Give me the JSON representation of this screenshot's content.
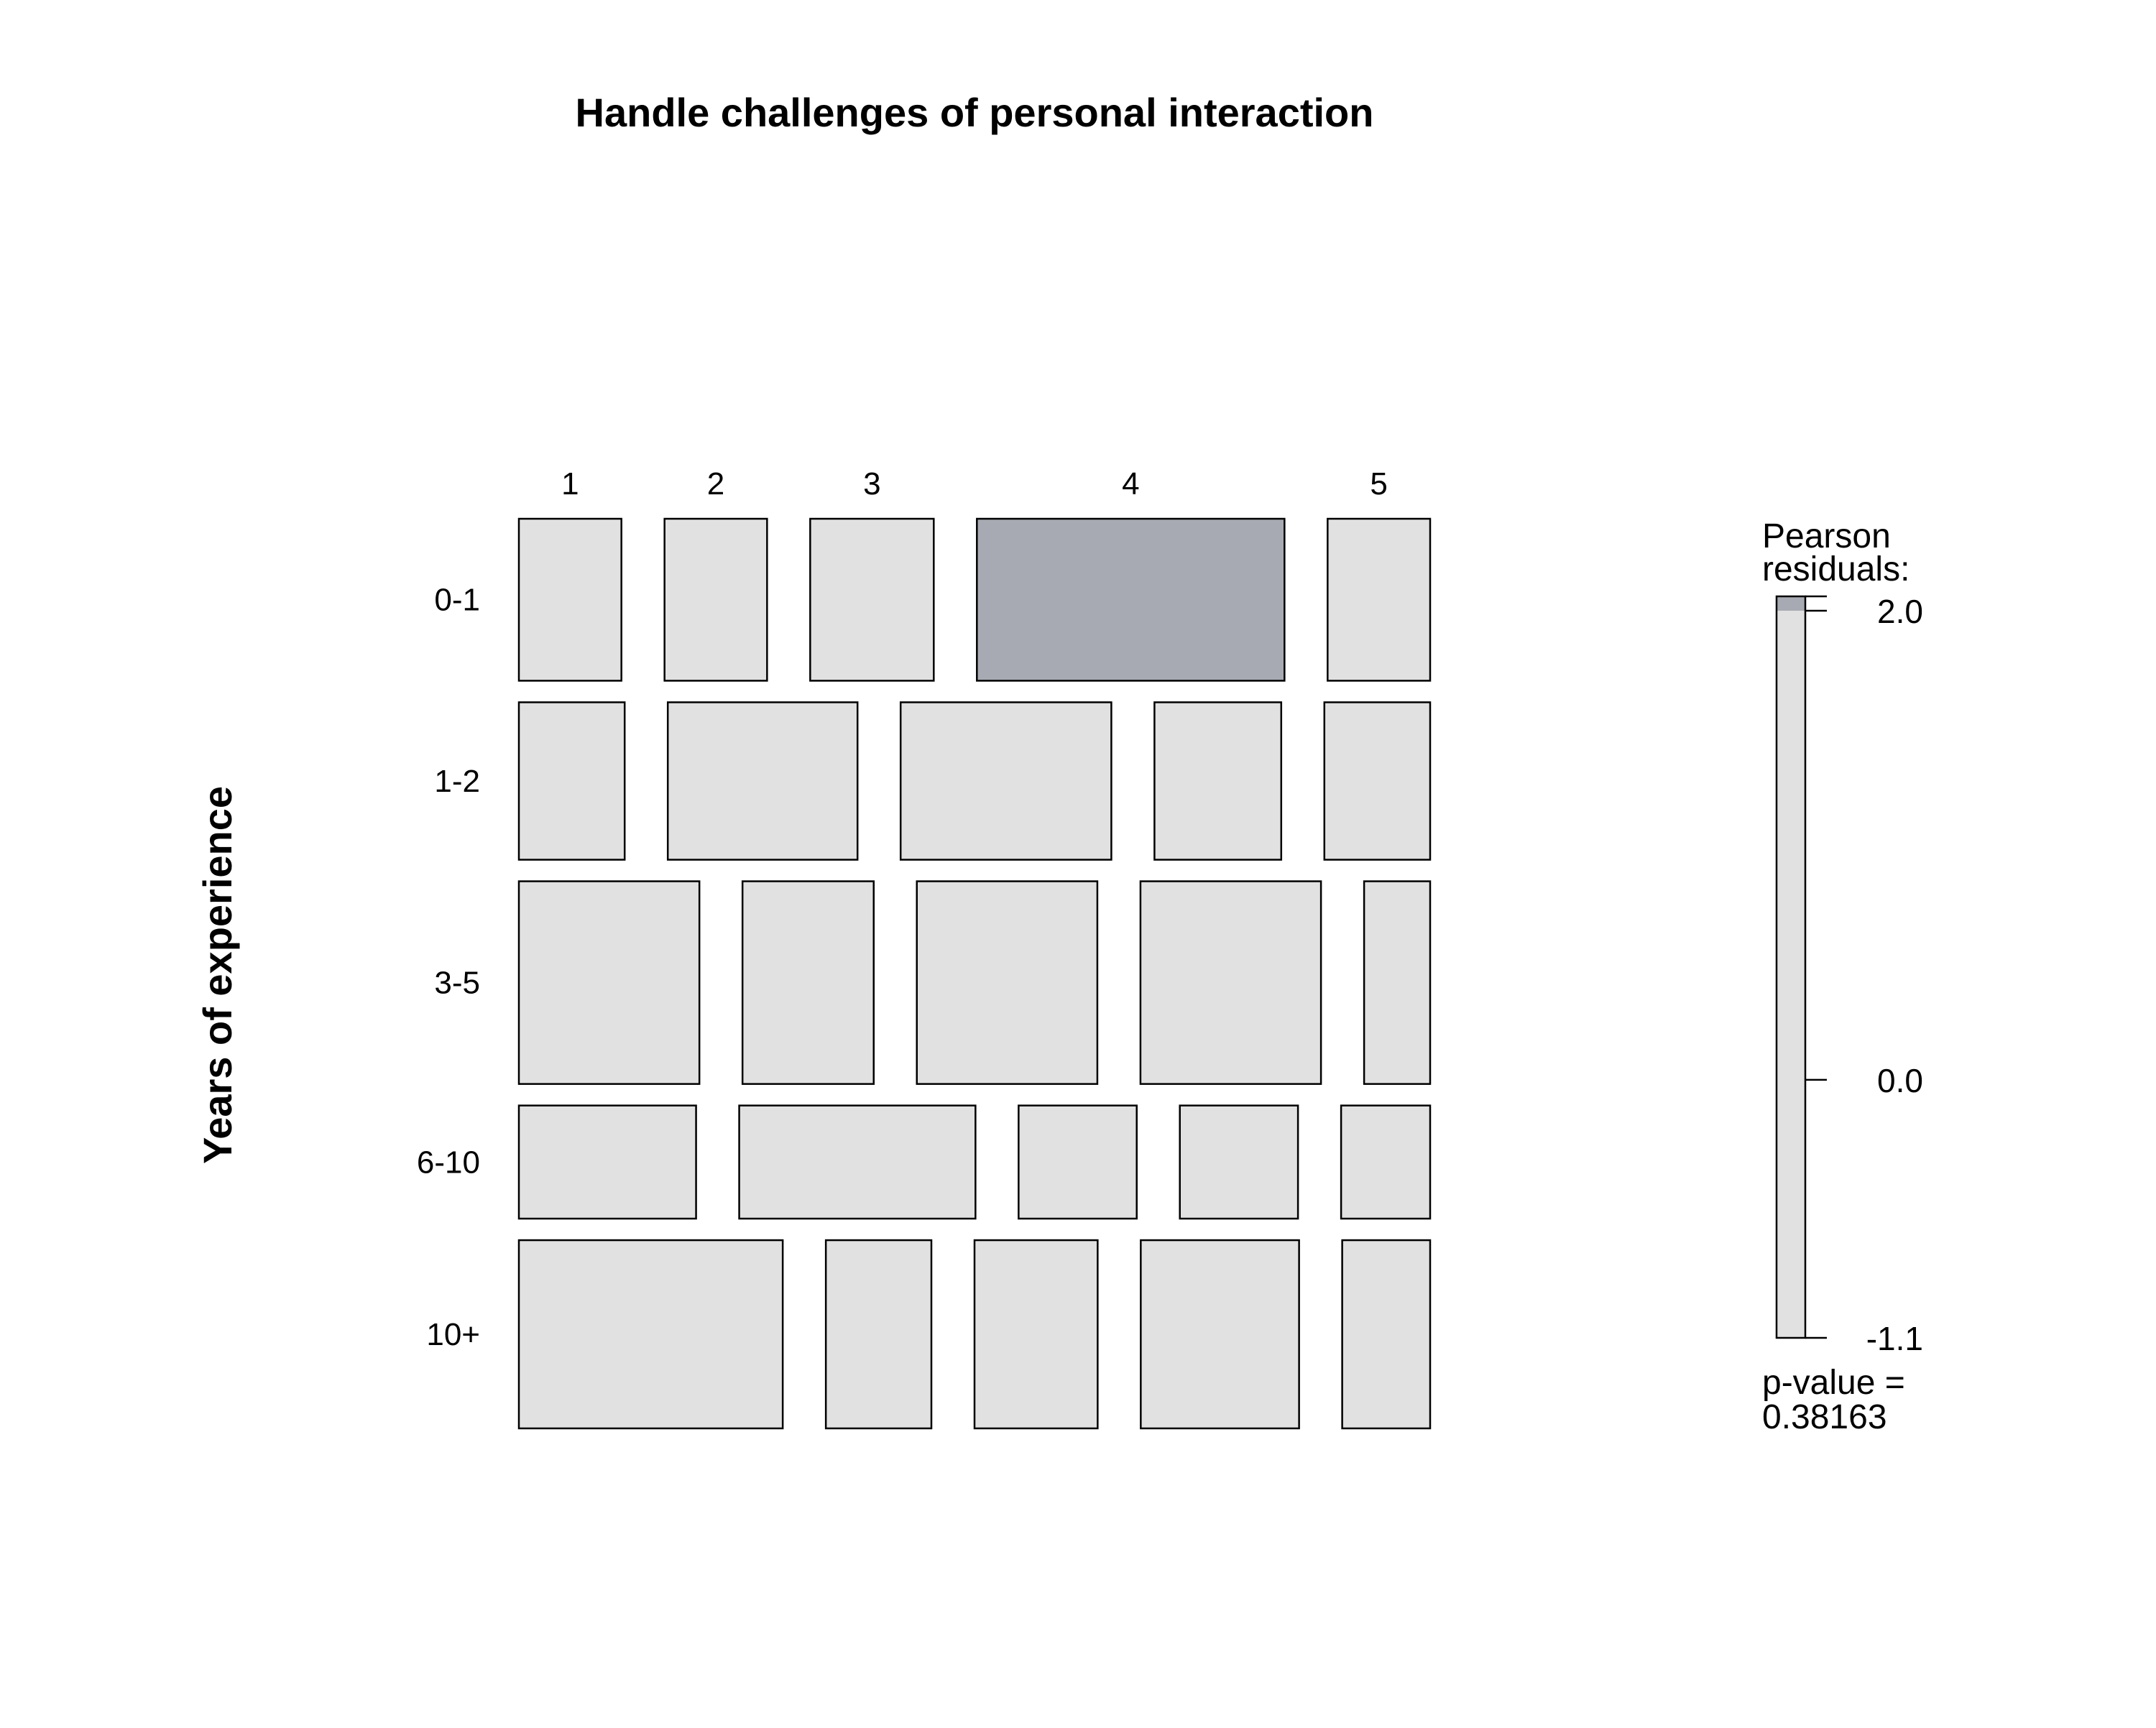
{
  "chart_data": {
    "type": "mosaic",
    "title": "Handle challenges of personal interaction",
    "ylabel": "Years of experience",
    "xlabel": "",
    "columns": [
      "1",
      "2",
      "3",
      "4",
      "5"
    ],
    "rows": [
      "0-1",
      "1-2",
      "3-5",
      "6-10",
      "10+"
    ],
    "row_proportions": [
      0.179,
      0.174,
      0.224,
      0.125,
      0.208
    ],
    "cell_proportions": [
      [
        0.117,
        0.117,
        0.141,
        0.351,
        0.117
      ],
      [
        0.121,
        0.217,
        0.241,
        0.145,
        0.121
      ],
      [
        0.205,
        0.149,
        0.205,
        0.205,
        0.075
      ],
      [
        0.201,
        0.268,
        0.134,
        0.134,
        0.101
      ],
      [
        0.3,
        0.12,
        0.14,
        0.18,
        0.1
      ]
    ],
    "residual_shading": [
      [
        "neutral",
        "neutral",
        "neutral",
        "positive",
        "neutral"
      ],
      [
        "neutral",
        "neutral",
        "neutral",
        "neutral",
        "neutral"
      ],
      [
        "neutral",
        "neutral",
        "neutral",
        "neutral",
        "neutral"
      ],
      [
        "neutral",
        "neutral",
        "neutral",
        "neutral",
        "neutral"
      ],
      [
        "neutral",
        "neutral",
        "neutral",
        "neutral",
        "neutral"
      ]
    ],
    "colors": {
      "neutral": "#e1e1e1",
      "positive": "#a8aab3",
      "border": "#000000"
    },
    "legend": {
      "title_line1": "Pearson",
      "title_line2": "residuals:",
      "max": 2.0,
      "min": -1.1,
      "shade_threshold": 2.0,
      "tick_values": [
        2.0,
        0.0,
        -1.1
      ],
      "tick_labels": [
        "2.0",
        "0.0",
        "-1.1"
      ],
      "pvalue_line1": "p-value =",
      "pvalue_line2": "0.38163"
    }
  }
}
